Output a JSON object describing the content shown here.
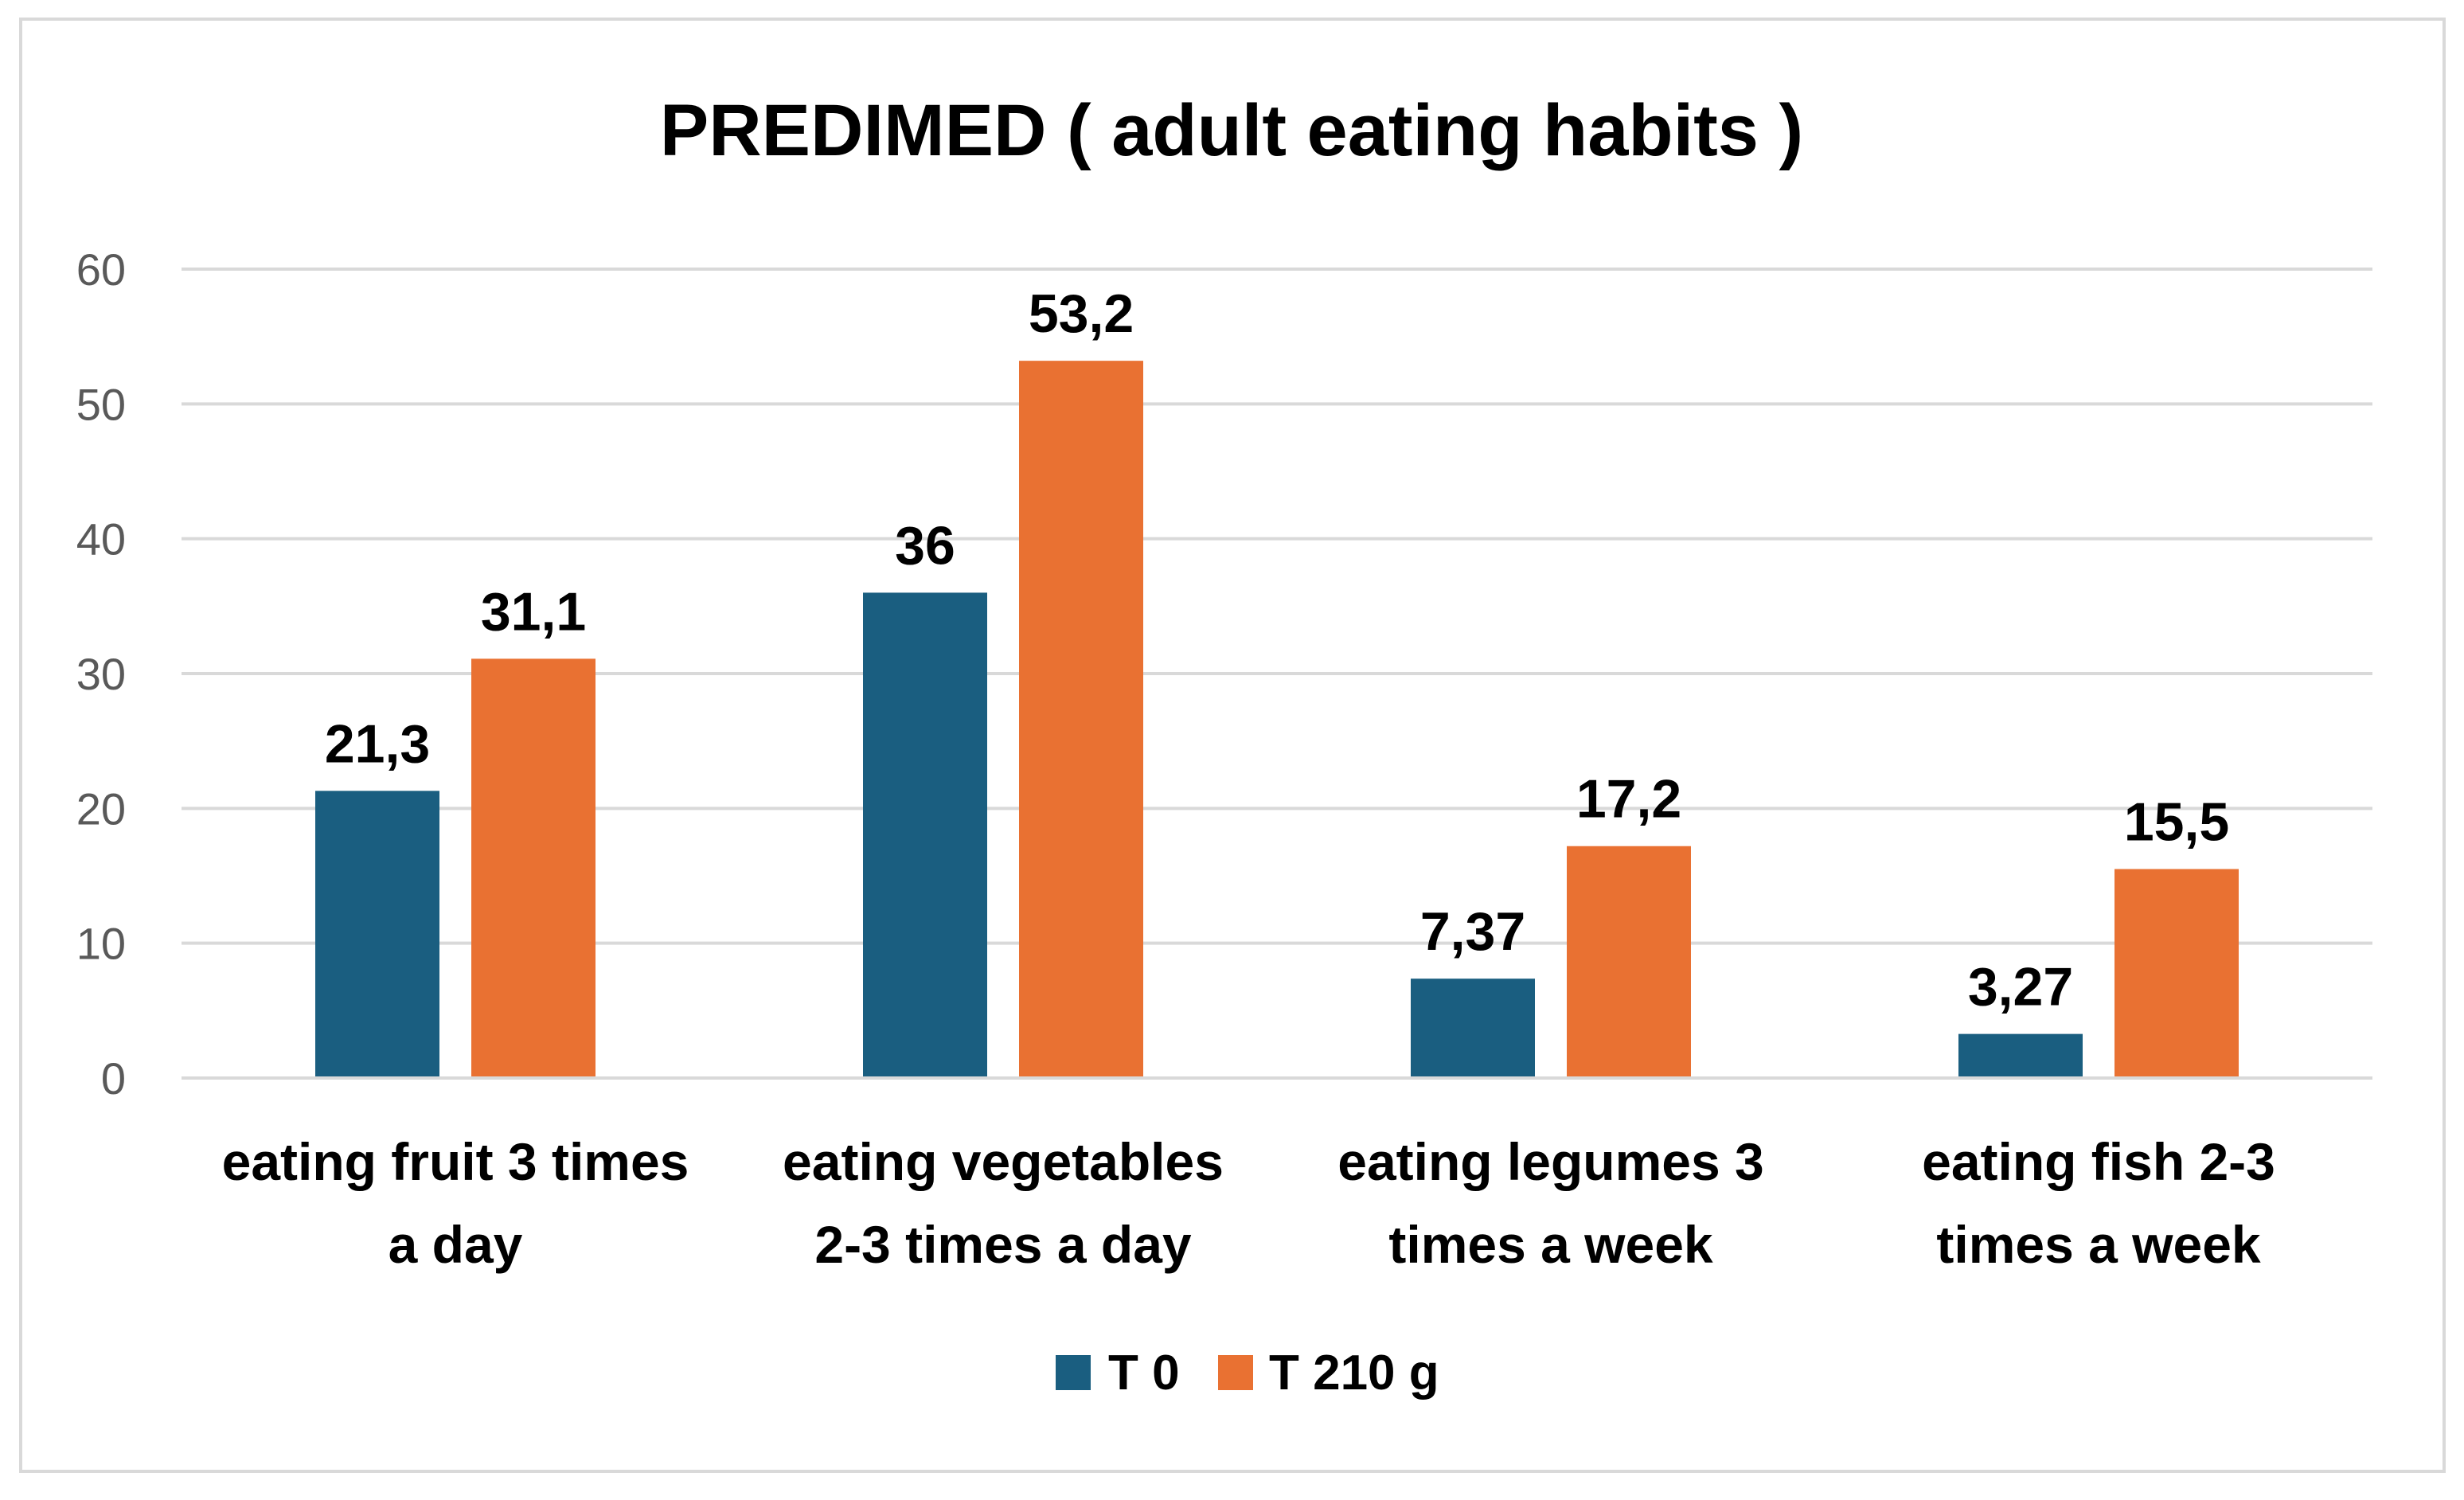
{
  "chart_data": {
    "type": "bar",
    "title": "PREDIMED ( adult eating habits )",
    "xlabel": "",
    "ylabel": "",
    "ylim": [
      0,
      60
    ],
    "yticks": [
      "0",
      "10",
      "20",
      "30",
      "40",
      "50",
      "60"
    ],
    "grid": true,
    "legend_position": "bottom",
    "categories": [
      [
        "eating fruit 3 times",
        "a day"
      ],
      [
        "eating vegetables",
        "2-3 times a day"
      ],
      [
        "eating legumes 3",
        "times a week"
      ],
      [
        "eating fish 2-3",
        "times a week"
      ]
    ],
    "series": [
      {
        "name": "T 0",
        "color": "#1a5e80",
        "values": [
          21.3,
          36,
          7.37,
          3.27
        ],
        "labels": [
          "21,3",
          "36",
          "7,37",
          "3,27"
        ]
      },
      {
        "name": "T 210 g",
        "color": "#e97132",
        "values": [
          31.1,
          53.2,
          17.2,
          15.5
        ],
        "labels": [
          "31,1",
          "53,2",
          "17,2",
          "15,5"
        ]
      }
    ]
  }
}
